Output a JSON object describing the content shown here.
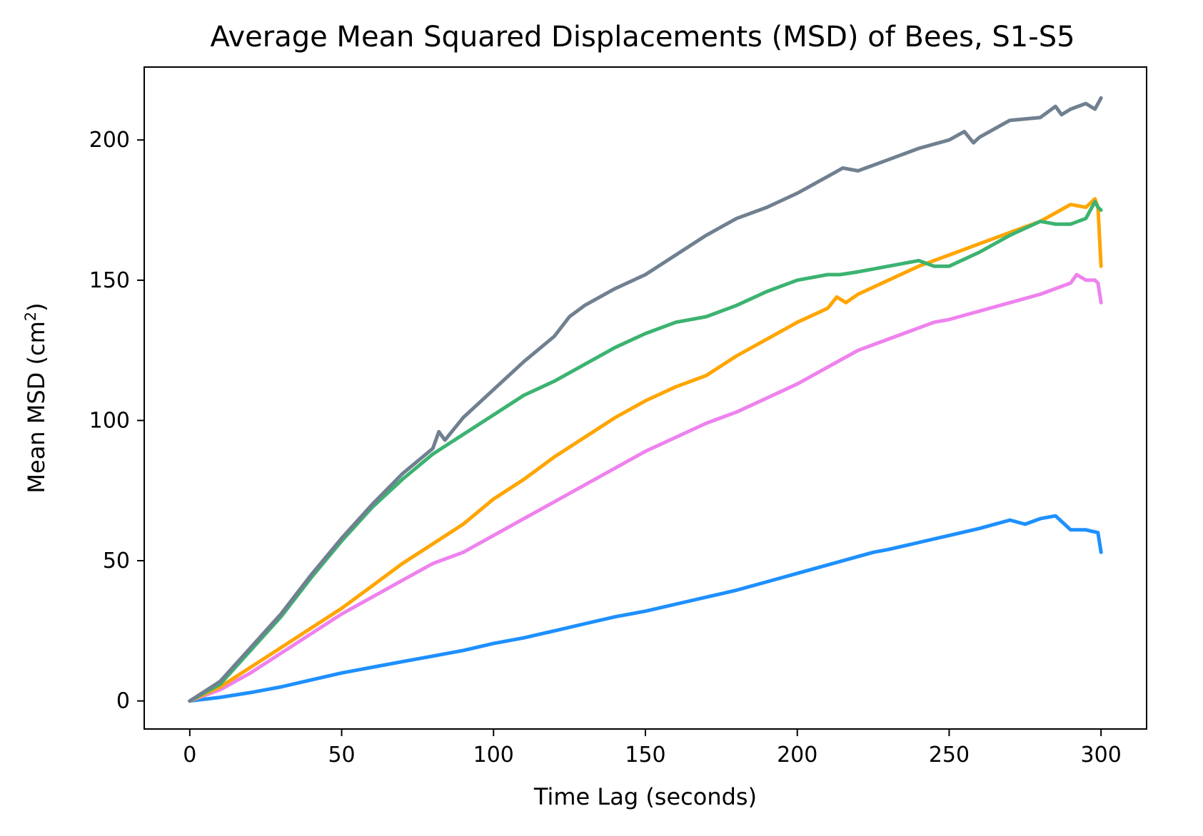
{
  "chart_data": {
    "type": "line",
    "title": "Average Mean Squared Displacements (MSD) of Bees, S1-S5",
    "xlabel": "Time Lag (seconds)",
    "ylabel_main": "Mean MSD (cm",
    "ylabel_sup": "2",
    "ylabel_end": ")",
    "xlim": [
      -15,
      315
    ],
    "ylim": [
      -10,
      226
    ],
    "xticks": [
      0,
      50,
      100,
      150,
      200,
      250,
      300
    ],
    "yticks": [
      0,
      50,
      100,
      150,
      200
    ],
    "xtick_labels": [
      "0",
      "50",
      "100",
      "150",
      "200",
      "250",
      "300"
    ],
    "ytick_labels": [
      "0",
      "50",
      "100",
      "150",
      "200"
    ],
    "series": [
      {
        "color": "#1e90ff",
        "x": [
          0,
          10,
          20,
          30,
          40,
          50,
          60,
          70,
          80,
          90,
          100,
          110,
          120,
          130,
          140,
          150,
          160,
          170,
          180,
          190,
          200,
          210,
          220,
          225,
          230,
          240,
          250,
          260,
          270,
          275,
          280,
          285,
          288,
          290,
          295,
          299,
          300
        ],
        "y": [
          0,
          1.3,
          3,
          5,
          7.5,
          10,
          12,
          14,
          16,
          18,
          20.5,
          22.5,
          25,
          27.5,
          30,
          32,
          34.5,
          37,
          39.5,
          42.5,
          45.5,
          48.5,
          51.5,
          53,
          54,
          56.5,
          59,
          61.5,
          64.5,
          63,
          65,
          66,
          63,
          61,
          61,
          60,
          53
        ]
      },
      {
        "color": "#ee82ee",
        "x": [
          0,
          10,
          20,
          30,
          40,
          50,
          60,
          70,
          80,
          90,
          100,
          110,
          120,
          130,
          140,
          145,
          150,
          160,
          170,
          180,
          190,
          200,
          210,
          220,
          230,
          240,
          245,
          250,
          260,
          270,
          280,
          290,
          292,
          295,
          298,
          299,
          300
        ],
        "y": [
          0,
          4,
          10,
          17,
          24,
          31,
          37,
          43,
          49,
          53,
          59,
          65,
          71,
          77,
          83,
          86,
          89,
          94,
          99,
          103,
          108,
          113,
          119,
          125,
          129,
          133,
          135,
          136,
          139,
          142,
          145,
          149,
          152,
          150,
          150,
          149,
          142
        ]
      },
      {
        "color": "#ffa500",
        "x": [
          0,
          10,
          20,
          30,
          40,
          50,
          60,
          70,
          80,
          90,
          100,
          110,
          120,
          130,
          140,
          150,
          160,
          170,
          180,
          190,
          200,
          210,
          213,
          216,
          220,
          230,
          240,
          250,
          260,
          270,
          280,
          290,
          295,
          298,
          299,
          300
        ],
        "y": [
          0,
          5,
          12,
          19,
          26,
          33,
          41,
          49,
          56,
          63,
          72,
          79,
          87,
          94,
          101,
          107,
          112,
          116,
          123,
          129,
          135,
          140,
          144,
          142,
          145,
          150,
          155,
          159,
          163,
          167,
          171,
          177,
          176,
          179,
          176,
          155
        ]
      },
      {
        "color": "#3cb371",
        "x": [
          0,
          10,
          20,
          30,
          40,
          50,
          60,
          70,
          80,
          90,
          100,
          110,
          120,
          130,
          140,
          150,
          160,
          170,
          180,
          190,
          195,
          200,
          210,
          214,
          220,
          230,
          240,
          245,
          250,
          260,
          270,
          280,
          285,
          290,
          295,
          298,
          299,
          300
        ],
        "y": [
          0,
          6,
          18,
          30,
          44,
          57,
          69,
          79,
          88,
          95,
          102,
          109,
          114,
          120,
          126,
          131,
          135,
          137,
          141,
          146,
          148,
          150,
          152,
          152,
          153,
          155,
          157,
          155,
          155,
          160,
          166,
          171,
          170,
          170,
          172,
          178,
          176,
          175
        ]
      },
      {
        "color": "#708090",
        "x": [
          0,
          10,
          20,
          30,
          40,
          50,
          60,
          70,
          80,
          82,
          84,
          90,
          100,
          110,
          120,
          125,
          130,
          140,
          150,
          160,
          170,
          180,
          190,
          200,
          210,
          215,
          220,
          230,
          240,
          250,
          255,
          258,
          260,
          270,
          280,
          285,
          287,
          290,
          295,
          298,
          300
        ],
        "y": [
          0,
          7,
          19,
          31,
          45,
          58,
          70,
          81,
          90,
          96,
          93,
          101,
          111,
          121,
          130,
          137,
          141,
          147,
          152,
          159,
          166,
          172,
          176,
          181,
          187,
          190,
          189,
          193,
          197,
          200,
          203,
          199,
          201,
          207,
          208,
          212,
          209,
          211,
          213,
          211,
          215
        ]
      }
    ]
  }
}
